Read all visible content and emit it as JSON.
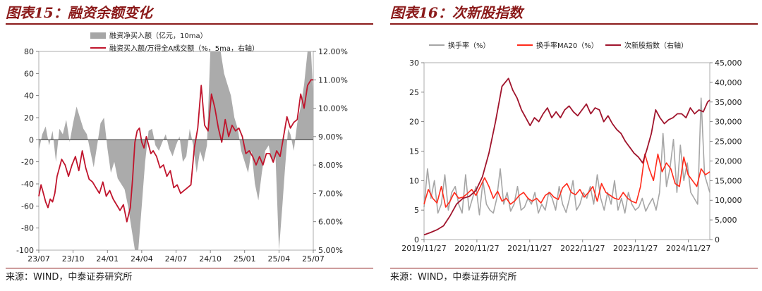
{
  "left_panel": {
    "title": "图表15：融资余额变化",
    "source": "来源：WIND，中泰证券研究所"
  },
  "right_panel": {
    "title": "图表16：次新股指数",
    "source": "来源：WIND，中泰证券研究所"
  },
  "chart_data": [
    {
      "type": "area",
      "title": "",
      "xlabel": "",
      "ylabel": "",
      "legend": "top",
      "x_ticks": [
        "23/07",
        "23/10",
        "24/01",
        "24/04",
        "24/07",
        "24/10",
        "25/01",
        "25/04",
        "25/07"
      ],
      "y_left": {
        "range": [
          -100,
          80
        ],
        "ticks": [
          80,
          60,
          40,
          20,
          0,
          -20,
          -40,
          -60,
          -80,
          -100
        ]
      },
      "y_right": {
        "range": [
          5.0,
          12.0
        ],
        "ticks": [
          "12.00%",
          "11.00%",
          "10.00%",
          "9.00%",
          "8.00%",
          "7.00%",
          "6.00%",
          "5.00%"
        ]
      },
      "x_range": [
        0,
        24
      ],
      "series": [
        {
          "name": "融资净买入额（亿元，10ma）",
          "type": "area",
          "axis": "left",
          "color": "#a6a6a6",
          "x": [
            0,
            0.3,
            0.6,
            0.9,
            1.2,
            1.5,
            1.8,
            2.1,
            2.4,
            2.7,
            3.0,
            3.3,
            3.6,
            3.9,
            4.2,
            4.5,
            4.8,
            5.1,
            5.4,
            5.7,
            6.0,
            6.3,
            6.6,
            6.9,
            7.2,
            7.5,
            7.8,
            8.1,
            8.4,
            8.7,
            9.0,
            9.3,
            9.6,
            9.9,
            10.2,
            10.5,
            10.8,
            11.1,
            11.4,
            11.7,
            12.0,
            12.3,
            12.6,
            12.9,
            13.2,
            13.5,
            13.8,
            14.1,
            14.4,
            14.7,
            15.0,
            15.3,
            15.6,
            15.9,
            16.2,
            16.5,
            16.8,
            17.1,
            17.4,
            17.7,
            18.0,
            18.3,
            18.6,
            18.9,
            19.2,
            19.5,
            19.8,
            20.1,
            20.4,
            20.7,
            21.0,
            21.3,
            21.5,
            21.8,
            22.0,
            22.3,
            22.6,
            22.9,
            23.2,
            23.5,
            23.8,
            24.0
          ],
          "values": [
            -10,
            5,
            12,
            -5,
            8,
            -20,
            10,
            5,
            18,
            -2,
            15,
            30,
            20,
            10,
            5,
            -10,
            -25,
            -5,
            15,
            20,
            -8,
            -30,
            -20,
            -35,
            -40,
            -45,
            -60,
            -80,
            -100,
            -100,
            -60,
            -20,
            8,
            10,
            -5,
            -10,
            -2,
            5,
            -8,
            -15,
            -5,
            3,
            -20,
            -15,
            10,
            -5,
            -30,
            -10,
            -20,
            -5,
            80,
            100,
            80,
            90,
            60,
            50,
            40,
            20,
            10,
            -10,
            -20,
            -30,
            -10,
            -40,
            -55,
            -30,
            -10,
            -5,
            -20,
            -15,
            -100,
            -60,
            -30,
            10,
            5,
            -10,
            15,
            30,
            50,
            80,
            100,
            40
          ],
          "color_hex": "#a6a6a6"
        },
        {
          "name": "融资买入额/万得全A成交额（%，5ma，右轴）",
          "type": "line",
          "axis": "right",
          "color": "#c0142c",
          "x": [
            0,
            0.2,
            0.4,
            0.6,
            0.8,
            1.0,
            1.2,
            1.4,
            1.6,
            1.8,
            2.0,
            2.3,
            2.6,
            2.9,
            3.2,
            3.5,
            3.8,
            4.1,
            4.4,
            4.7,
            5.0,
            5.3,
            5.6,
            5.9,
            6.2,
            6.5,
            6.8,
            7.1,
            7.4,
            7.7,
            8.0,
            8.2,
            8.4,
            8.6,
            8.8,
            9.0,
            9.2,
            9.4,
            9.6,
            9.8,
            10.0,
            10.3,
            10.6,
            10.9,
            11.2,
            11.5,
            11.8,
            12.1,
            12.4,
            12.7,
            13.0,
            13.3,
            13.6,
            13.9,
            14.2,
            14.5,
            14.8,
            15.1,
            15.4,
            15.7,
            16.0,
            16.3,
            16.6,
            16.9,
            17.2,
            17.5,
            17.8,
            18.1,
            18.4,
            18.7,
            19.0,
            19.3,
            19.6,
            19.9,
            20.2,
            20.5,
            20.8,
            21.1,
            21.4,
            21.7,
            22.0,
            22.3,
            22.6,
            22.9,
            23.2,
            23.5,
            23.8,
            24.0
          ],
          "values": [
            6.9,
            7.3,
            7.0,
            6.7,
            6.5,
            6.8,
            6.7,
            7.0,
            7.6,
            7.9,
            8.2,
            8.0,
            7.6,
            8.0,
            8.3,
            7.8,
            8.5,
            7.9,
            7.5,
            7.4,
            7.2,
            7.0,
            7.4,
            6.9,
            7.1,
            6.8,
            6.6,
            6.4,
            6.6,
            6.0,
            6.5,
            7.5,
            8.8,
            9.2,
            9.3,
            8.8,
            8.6,
            9.0,
            8.7,
            8.4,
            8.5,
            8.3,
            7.9,
            8.0,
            7.6,
            7.8,
            7.2,
            7.3,
            7.0,
            7.1,
            7.2,
            7.3,
            8.6,
            9.3,
            10.8,
            9.4,
            9.2,
            10.5,
            10.0,
            9.3,
            8.8,
            9.6,
            9.0,
            9.4,
            9.2,
            9.3,
            9.0,
            8.4,
            8.5,
            8.3,
            8.0,
            8.3,
            8.0,
            8.4,
            8.4,
            8.1,
            8.5,
            8.3,
            9.0,
            9.7,
            9.3,
            9.5,
            9.6,
            10.5,
            10.0,
            10.8,
            11.0,
            11.0
          ],
          "color_hex": "#c0142c"
        }
      ]
    },
    {
      "type": "line",
      "title": "",
      "xlabel": "",
      "ylabel": "",
      "legend": "top",
      "x_ticks": [
        "2019/11/27",
        "2020/11/27",
        "2021/11/27",
        "2022/11/27",
        "2023/11/27",
        "2024/11/27"
      ],
      "y_left": {
        "range": [
          0,
          30
        ],
        "ticks": [
          30,
          25,
          20,
          15,
          10,
          5,
          0
        ]
      },
      "y_right": {
        "range": [
          0,
          45000
        ],
        "ticks": [
          "45,000",
          "40,000",
          "35,000",
          "30,000",
          "25,000",
          "20,000",
          "15,000",
          "10,000",
          "5,000",
          "0"
        ]
      },
      "x_range": [
        0,
        6.6
      ],
      "series": [
        {
          "name": "换手率（%）",
          "axis": "left",
          "color": "#a6a6a6",
          "x": [
            0,
            0.08,
            0.16,
            0.24,
            0.32,
            0.4,
            0.48,
            0.56,
            0.64,
            0.72,
            0.8,
            0.88,
            0.96,
            1.04,
            1.12,
            1.2,
            1.28,
            1.36,
            1.44,
            1.52,
            1.6,
            1.68,
            1.76,
            1.84,
            1.92,
            2.0,
            2.08,
            2.16,
            2.24,
            2.32,
            2.4,
            2.48,
            2.56,
            2.64,
            2.72,
            2.8,
            2.88,
            2.96,
            3.04,
            3.12,
            3.2,
            3.28,
            3.36,
            3.44,
            3.52,
            3.6,
            3.68,
            3.76,
            3.84,
            3.92,
            4.0,
            4.08,
            4.16,
            4.24,
            4.32,
            4.4,
            4.48,
            4.56,
            4.64,
            4.72,
            4.8,
            4.88,
            4.96,
            5.04,
            5.12,
            5.2,
            5.28,
            5.36,
            5.44,
            5.52,
            5.6,
            5.68,
            5.76,
            5.84,
            5.92,
            6.0,
            6.08,
            6.16,
            6.24,
            6.32,
            6.4,
            6.48,
            6.56,
            6.6
          ],
          "values": [
            5.5,
            12,
            7,
            10,
            4.5,
            6,
            11,
            5,
            8,
            9,
            6,
            4.5,
            11,
            5,
            7,
            9,
            4.2,
            10,
            6,
            5,
            4.5,
            7,
            12,
            6,
            8,
            4.8,
            6,
            9,
            5,
            5.5,
            7,
            6,
            8,
            4.5,
            6,
            5,
            8,
            7,
            5,
            9,
            6,
            4.6,
            7,
            10,
            5,
            6,
            8,
            7,
            9,
            6,
            11,
            7,
            5,
            8,
            6,
            10,
            5,
            7,
            4.5,
            8,
            6,
            5,
            5.5,
            7,
            4.8,
            6,
            7,
            5,
            8,
            18,
            9,
            12,
            17,
            8,
            16,
            10,
            13,
            8,
            7,
            6,
            24,
            11,
            9,
            8
          ],
          "color_hex": "#a6a6a6"
        },
        {
          "name": "换手率MA20（%）",
          "axis": "left",
          "color": "#ff2a1a",
          "x": [
            0,
            0.1,
            0.2,
            0.3,
            0.4,
            0.5,
            0.6,
            0.7,
            0.8,
            0.9,
            1.0,
            1.1,
            1.2,
            1.3,
            1.4,
            1.5,
            1.6,
            1.7,
            1.8,
            1.9,
            2.0,
            2.1,
            2.2,
            2.3,
            2.4,
            2.5,
            2.6,
            2.7,
            2.8,
            2.9,
            3.0,
            3.1,
            3.2,
            3.3,
            3.4,
            3.5,
            3.6,
            3.7,
            3.8,
            3.9,
            4.0,
            4.1,
            4.2,
            4.3,
            4.4,
            4.5,
            4.6,
            4.7,
            4.8,
            4.9,
            5.0,
            5.1,
            5.2,
            5.3,
            5.4,
            5.5,
            5.6,
            5.7,
            5.8,
            5.9,
            6.0,
            6.1,
            6.2,
            6.3,
            6.4,
            6.5,
            6.6
          ],
          "values": [
            6,
            8.5,
            7,
            6.2,
            9,
            5.5,
            6.5,
            8,
            7,
            7.2,
            7.8,
            8.5,
            7.5,
            9,
            10.5,
            9,
            7,
            8.2,
            6.5,
            7,
            6,
            6.6,
            7.5,
            8,
            7,
            6.5,
            7,
            6.2,
            7.5,
            8,
            7.2,
            6.8,
            8.8,
            9.5,
            8,
            7.6,
            8.5,
            7.2,
            8,
            9,
            6.5,
            9.5,
            8,
            7.5,
            7,
            6.8,
            8,
            7,
            6.5,
            6.2,
            9,
            14.5,
            12,
            10,
            14.5,
            11.5,
            13,
            12,
            9.5,
            9,
            14,
            11,
            10,
            9,
            12,
            11,
            11.5
          ],
          "color_hex": "#ff2a1a"
        },
        {
          "name": "次新股指数（右轴）",
          "axis": "right",
          "color": "#a0142c",
          "x": [
            0,
            0.15,
            0.3,
            0.45,
            0.6,
            0.75,
            0.9,
            1.05,
            1.2,
            1.35,
            1.5,
            1.65,
            1.8,
            1.95,
            2.05,
            2.15,
            2.25,
            2.35,
            2.45,
            2.55,
            2.65,
            2.75,
            2.85,
            2.95,
            3.05,
            3.15,
            3.25,
            3.35,
            3.45,
            3.55,
            3.65,
            3.75,
            3.85,
            3.95,
            4.05,
            4.15,
            4.25,
            4.35,
            4.45,
            4.55,
            4.65,
            4.75,
            4.85,
            4.95,
            5.05,
            5.15,
            5.25,
            5.35,
            5.45,
            5.55,
            5.65,
            5.75,
            5.85,
            5.95,
            6.05,
            6.15,
            6.25,
            6.35,
            6.45,
            6.55,
            6.6
          ],
          "values": [
            1200,
            1800,
            2500,
            3500,
            6000,
            9000,
            10500,
            11000,
            12500,
            16000,
            22000,
            30000,
            39000,
            41000,
            38000,
            36000,
            33000,
            31000,
            29000,
            31000,
            30000,
            32000,
            33500,
            31000,
            32500,
            31000,
            33000,
            34000,
            32500,
            31500,
            33000,
            34500,
            32000,
            33500,
            33000,
            30000,
            31500,
            29500,
            28000,
            27000,
            25000,
            23500,
            22000,
            21000,
            19500,
            23000,
            27000,
            33000,
            31000,
            29500,
            30500,
            31000,
            32000,
            32000,
            31000,
            33500,
            32000,
            33000,
            32500,
            35000,
            35500
          ],
          "color_hex": "#a0142c"
        }
      ]
    }
  ]
}
